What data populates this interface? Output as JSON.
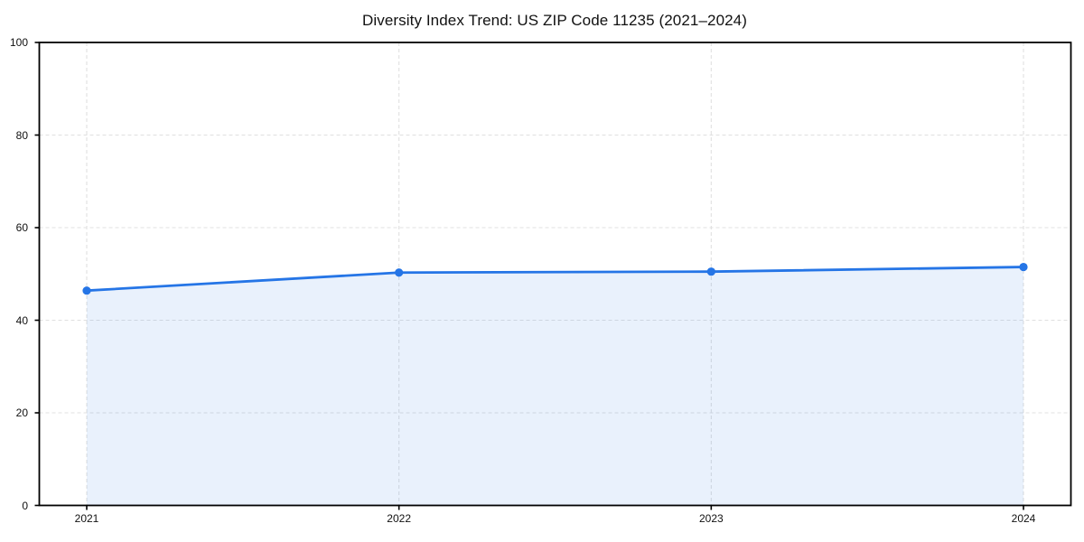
{
  "chart": {
    "title": "Diversity Index Trend: US ZIP Code 11235 (2021–2024)"
  },
  "chart_data": {
    "type": "area",
    "title": "Diversity Index Trend: US ZIP Code 11235 (2021–2024)",
    "x": [
      2021,
      2022,
      2023,
      2024
    ],
    "xtick_labels": [
      "2021",
      "2022",
      "2023",
      "2024"
    ],
    "series": [
      {
        "name": "Diversity Index",
        "values": [
          46.4,
          50.3,
          50.5,
          51.5
        ]
      }
    ],
    "xlabel": "",
    "ylabel": "",
    "ylim": [
      0,
      100
    ],
    "yticks": [
      0,
      20,
      40,
      60,
      80,
      100
    ],
    "grid": true,
    "grid_style": "dashed",
    "legend": "none",
    "colors": {
      "line": "#2575e6",
      "fill": "rgba(37,117,230,0.10)",
      "grid": "#e0e0e0",
      "axis": "#000000",
      "text": "#111111",
      "background": "#ffffff"
    },
    "marker": "circle"
  }
}
